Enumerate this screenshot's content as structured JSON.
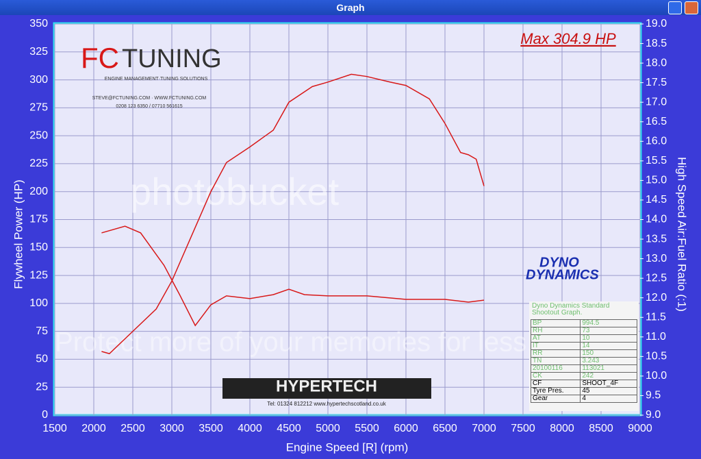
{
  "window_title": "Graph",
  "chart_data": {
    "type": "line",
    "annotation": "Max 304.9 HP",
    "xlabel": "Engine Speed [R] (rpm)",
    "ylabel": "Flywheel Power (HP)",
    "y2label": "High Speed Air:Fuel Ratio (:1)",
    "xlim": [
      1500,
      9000
    ],
    "xticks": [
      1500,
      2000,
      2500,
      3000,
      3500,
      4000,
      4500,
      5000,
      5500,
      6000,
      6500,
      7000,
      7500,
      8000,
      8500,
      9000
    ],
    "ylim": [
      0,
      350
    ],
    "yticks": [
      0,
      25,
      50,
      75,
      100,
      125,
      150,
      175,
      200,
      225,
      250,
      275,
      300,
      325,
      350
    ],
    "y2lim": [
      9,
      19
    ],
    "y2ticks": [
      {
        "value": 9,
        "label": "9.0"
      },
      9.5,
      {
        "value": 10,
        "label": "10.0"
      },
      10.5,
      {
        "value": 11,
        "label": "11.0"
      },
      11.5,
      {
        "value": 12,
        "label": "12.0"
      },
      12.5,
      {
        "value": 13,
        "label": "13.0"
      },
      13.5,
      {
        "value": 14,
        "label": "14.0"
      },
      14.5,
      {
        "value": 15,
        "label": "15.0"
      },
      15.5,
      {
        "value": 16,
        "label": "16.0"
      },
      16.5,
      {
        "value": 17,
        "label": "17.0"
      },
      17.5,
      {
        "value": 18,
        "label": "18.0"
      },
      18.5,
      {
        "value": 19,
        "label": "19.0"
      }
    ],
    "grid": true,
    "series": [
      {
        "color": "#d81818",
        "x": [
          2100,
          2200,
          2500,
          2800,
          3000,
          3250,
          3500,
          3700,
          4000,
          4300,
          4500,
          4800,
          5000,
          5300,
          5500,
          5800,
          6000,
          6300,
          6500,
          6700,
          6800,
          6900,
          7000
        ],
        "values": [
          57,
          55,
          75,
          95,
          120,
          160,
          200,
          226,
          240,
          255,
          280,
          294,
          298,
          305,
          303,
          298,
          295,
          283,
          261,
          235,
          233,
          229,
          205
        ]
      },
      {
        "color": "#d81818",
        "axis": "y2",
        "x": [
          2100,
          2400,
          2600,
          2900,
          3100,
          3300,
          3500,
          3700,
          4000,
          4300,
          4500,
          4700,
          5000,
          5500,
          6000,
          6500,
          6800,
          7000
        ],
        "values": [
          13.66,
          13.83,
          13.66,
          12.83,
          12.08,
          11.29,
          11.82,
          12.05,
          11.98,
          12.08,
          12.22,
          12.08,
          12.05,
          12.05,
          11.96,
          11.96,
          11.89,
          11.94
        ]
      }
    ]
  },
  "logos": {
    "fc_a": "FC",
    "fc_b": "TUNING",
    "fc_sub": "ENGINE MANAGEMENT·TUNING SOLUTIONS",
    "fc_mail": "STEVE@FCTUNING.COM  ·  WWW.FCTUNING.COM",
    "fc_tel": "0208 123 6350 / 07710 561615",
    "dyno_a": "DYNO",
    "dyno_b": "DYNAMICS",
    "hyper": "HYPERTECH",
    "hyper_tel": "Tel: 01324 812212    www.hypertechscotland.co.uk"
  },
  "watermark": {
    "brand": "photobucket",
    "slogan": "Protect more of your memories for less!"
  },
  "info": {
    "header": "Dyno Dynamics Standard Shootout Graph.",
    "rows": [
      [
        "BP",
        "994.5"
      ],
      [
        "RH",
        "73"
      ],
      [
        "AT",
        "10"
      ],
      [
        "IT",
        "14"
      ],
      [
        "RR",
        "150"
      ],
      [
        "TN",
        "3.243"
      ],
      [
        "20100116",
        "113021"
      ],
      [
        "CK",
        "242"
      ],
      [
        "CF",
        "SHOOT_4F"
      ],
      [
        "Tyre Pres.",
        "45"
      ],
      [
        "Gear",
        "4"
      ]
    ]
  }
}
